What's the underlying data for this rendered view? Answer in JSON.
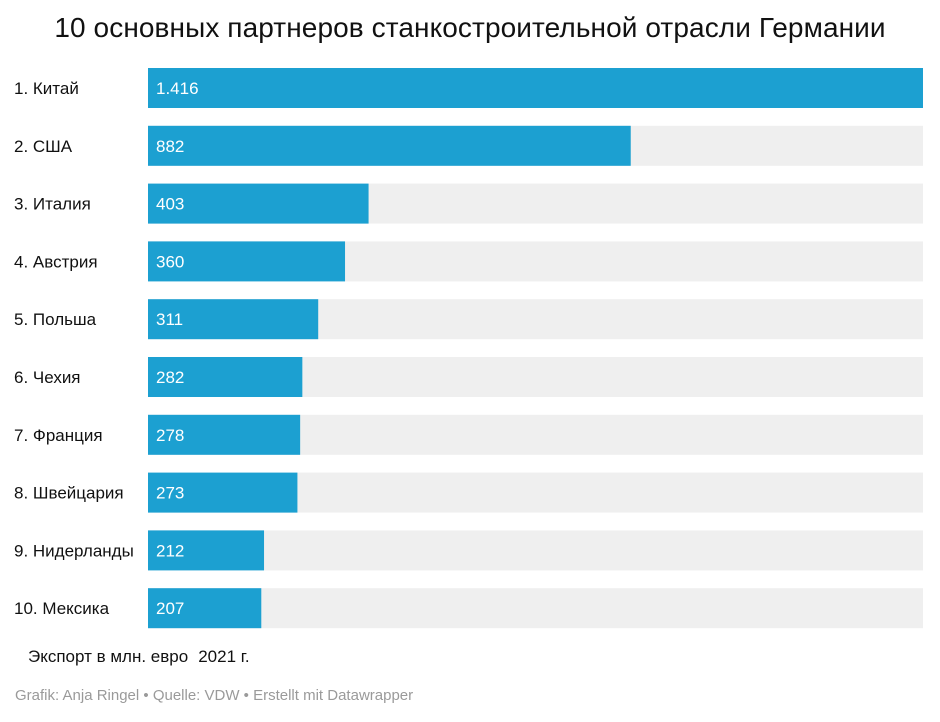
{
  "chart_data": {
    "type": "bar",
    "orientation": "horizontal",
    "title": "10 основных партнеров станкостроительной отрасли Германии",
    "categories": [
      "1. Китай",
      "2. США",
      "3. Италия",
      "4. Австрия",
      "5. Польша",
      "6. Чехия",
      "7. Франция",
      "8. Швейцария",
      "9. Нидерланды",
      "10. Мексика"
    ],
    "values": [
      1416,
      882,
      403,
      360,
      311,
      282,
      278,
      273,
      212,
      207
    ],
    "value_labels": [
      "1.416",
      "882",
      "403",
      "360",
      "311",
      "282",
      "278",
      "273",
      "212",
      "207"
    ],
    "xlim": [
      0,
      1416
    ],
    "grid": false,
    "bar_color": "#1ca0d1",
    "track_color": "#efefef",
    "label_color": "#ffffff"
  },
  "note": {
    "unit": "Экспорт в млн. евро",
    "year": "2021 г."
  },
  "footer": "Grafik: Anja Ringel • Quelle: VDW • Erstellt mit Datawrapper"
}
